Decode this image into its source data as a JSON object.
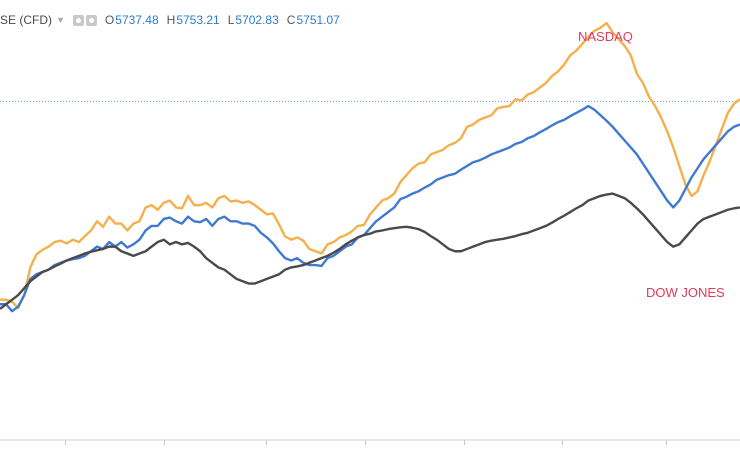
{
  "legend": {
    "symbol": "SE (CFD)",
    "open_label": "O",
    "open": "5737.48",
    "high_label": "H",
    "high": "5753.21",
    "low_label": "L",
    "low": "5702.83",
    "close_label": "C",
    "close": "5751.07",
    "icons": [
      "settings-icon",
      "visibility-icon",
      "dropdown-caret-icon"
    ]
  },
  "chart_data": {
    "type": "line",
    "title": "",
    "xlabel": "",
    "ylabel": "",
    "grid": false,
    "legend": "none",
    "x_range": [
      0,
      122
    ],
    "y_range": [
      0,
      100
    ],
    "reference_line": {
      "value": 78.0,
      "color": "#5b9bd5",
      "style": "dotted"
    },
    "annotations": [
      {
        "text": "NASDAQ",
        "color": "#e03a5a"
      },
      {
        "text": "DOW JONES",
        "color": "#e03a5a"
      }
    ],
    "series": [
      {
        "color": "#f5b04c",
        "values": [
          35.0,
          35.0,
          34.5,
          33.2,
          36.0,
          42.0,
          44.8,
          45.8,
          46.5,
          47.5,
          47.8,
          47.2,
          48.0,
          47.5,
          48.8,
          50.0,
          52.0,
          50.8,
          53.0,
          51.5,
          51.5,
          50.0,
          51.5,
          52.0,
          55.0,
          55.5,
          54.5,
          56.0,
          56.5,
          55.0,
          54.8,
          57.5,
          55.5,
          55.5,
          56.0,
          55.0,
          57.0,
          57.5,
          56.3,
          56.5,
          56.0,
          56.3,
          55.5,
          54.5,
          53.5,
          53.7,
          51.3,
          48.7,
          48.0,
          48.5,
          47.8,
          46.0,
          45.5,
          45.0,
          47.0,
          47.5,
          48.5,
          49.0,
          49.8,
          51.0,
          51.2,
          53.5,
          55.0,
          56.5,
          57.0,
          58.0,
          60.5,
          62.0,
          63.5,
          64.5,
          64.8,
          66.5,
          67.0,
          67.5,
          68.5,
          69.0,
          70.0,
          72.5,
          73.0,
          74.0,
          74.5,
          75.0,
          76.5,
          76.8,
          77.0,
          78.5,
          78.2,
          79.5,
          80.0,
          81.0,
          82.0,
          83.5,
          84.5,
          86.0,
          88.0,
          89.0,
          90.5,
          92.0,
          93.3,
          94.0,
          95.0,
          93.0,
          91.5,
          90.0,
          88.0,
          84.0,
          82.0,
          79.0,
          77.0,
          74.5,
          71.5,
          68.0,
          64.0,
          60.0,
          57.5,
          58.5,
          62.0,
          65.0,
          68.5,
          72.0,
          75.5,
          77.5,
          78.5
        ]
      },
      {
        "color": "#3f7ad0",
        "values": [
          34.0,
          34.0,
          32.5,
          33.5,
          36.0,
          39.5,
          40.5,
          41.0,
          41.5,
          42.5,
          43.0,
          43.5,
          43.8,
          44.0,
          44.5,
          45.5,
          46.5,
          46.0,
          47.5,
          46.5,
          47.5,
          46.3,
          47.0,
          48.0,
          50.0,
          51.0,
          51.0,
          52.5,
          52.8,
          52.0,
          51.5,
          53.0,
          52.0,
          51.8,
          52.5,
          51.0,
          52.5,
          53.0,
          52.0,
          52.0,
          51.5,
          51.5,
          51.0,
          49.5,
          48.5,
          47.2,
          45.5,
          44.0,
          43.5,
          44.0,
          43.0,
          42.5,
          42.5,
          42.3,
          44.0,
          44.5,
          45.5,
          46.5,
          47.0,
          48.5,
          49.0,
          50.5,
          52.0,
          53.0,
          54.0,
          55.0,
          56.8,
          57.3,
          58.0,
          58.5,
          59.3,
          60.0,
          61.0,
          61.5,
          62.0,
          62.3,
          63.2,
          64.0,
          64.8,
          65.2,
          65.8,
          66.5,
          67.0,
          67.5,
          68.0,
          68.8,
          69.2,
          70.0,
          70.5,
          71.3,
          72.0,
          72.8,
          73.5,
          74.0,
          74.8,
          75.5,
          76.2,
          77.0,
          76.2,
          75.0,
          73.8,
          72.5,
          71.0,
          69.5,
          68.0,
          66.5,
          64.5,
          62.5,
          60.5,
          58.5,
          56.5,
          55.0,
          56.5,
          59.0,
          61.5,
          63.5,
          65.5,
          67.0,
          68.5,
          70.0,
          71.5,
          72.5,
          73.0
        ]
      },
      {
        "color": "#4a4a4a",
        "values": [
          33.0,
          34.0,
          35.0,
          36.0,
          37.5,
          39.0,
          40.0,
          41.0,
          41.5,
          42.2,
          42.8,
          43.5,
          44.0,
          44.5,
          45.0,
          45.4,
          45.7,
          46.0,
          46.5,
          46.5,
          45.5,
          45.0,
          44.5,
          45.0,
          45.5,
          46.5,
          47.5,
          48.0,
          47.0,
          47.5,
          47.0,
          47.3,
          46.5,
          45.5,
          44.0,
          43.0,
          42.0,
          41.5,
          40.5,
          39.5,
          39.0,
          38.5,
          38.5,
          39.0,
          39.5,
          40.0,
          40.5,
          41.5,
          42.0,
          42.2,
          42.5,
          43.0,
          43.5,
          44.0,
          44.5,
          45.2,
          46.0,
          47.0,
          47.8,
          48.5,
          49.0,
          49.3,
          49.8,
          50.0,
          50.3,
          50.5,
          50.7,
          50.8,
          50.6,
          50.3,
          49.7,
          48.8,
          48.0,
          47.0,
          46.0,
          45.5,
          45.5,
          46.0,
          46.5,
          47.0,
          47.5,
          47.8,
          48.0,
          48.2,
          48.5,
          48.8,
          49.2,
          49.5,
          50.0,
          50.5,
          51.0,
          51.7,
          52.5,
          53.2,
          54.0,
          54.8,
          55.5,
          56.5,
          57.0,
          57.5,
          57.8,
          58.0,
          57.5,
          57.0,
          56.0,
          54.8,
          53.5,
          52.0,
          50.5,
          49.0,
          47.5,
          46.5,
          47.0,
          48.5,
          50.0,
          51.5,
          52.5,
          53.0,
          53.5,
          54.0,
          54.5,
          54.8,
          55.0
        ]
      }
    ]
  }
}
